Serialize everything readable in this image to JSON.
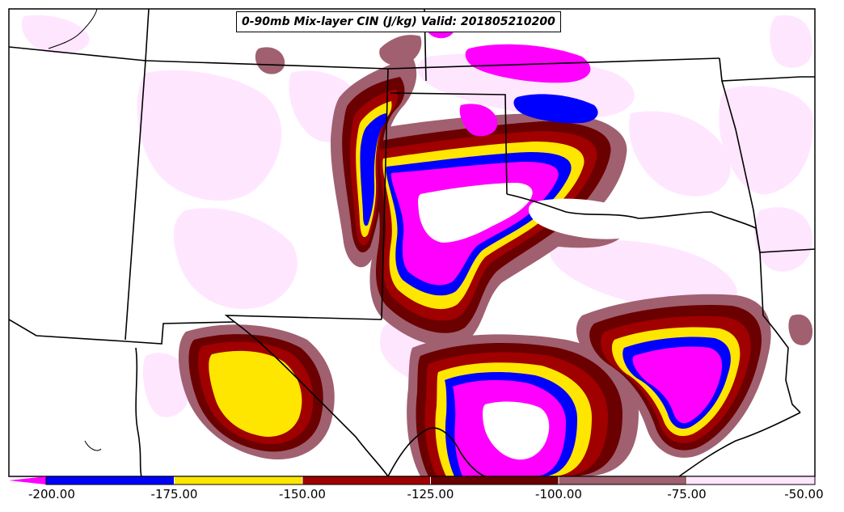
{
  "title": "0-90mb Mix-layer CIN (J/kg) Valid: 201805210200",
  "colorbar": {
    "tick_labels": [
      "-200.00",
      "-175.00",
      "-150.00",
      "-125.00",
      "-100.00",
      "-75.00",
      "-50.00"
    ],
    "bins": [
      {
        "from": -200,
        "to": -175,
        "color": "#0000ff"
      },
      {
        "from": -175,
        "to": -150,
        "color": "#ffe600"
      },
      {
        "from": -150,
        "to": -125,
        "color": "#a00000"
      },
      {
        "from": -125,
        "to": -100,
        "color": "#6b0000"
      },
      {
        "from": -100,
        "to": -75,
        "color": "#a06070"
      },
      {
        "from": -75,
        "to": -50,
        "color": "#ffe6ff"
      }
    ],
    "extend_low_color": "#ff00ff"
  },
  "colors": {
    "magenta": "#ff00ff",
    "blue": "#0000ff",
    "yellow": "#ffe600",
    "red": "#a00000",
    "darkred": "#6b0000",
    "mauve": "#a06070",
    "pale": "#ffe6ff",
    "border": "#000000"
  }
}
